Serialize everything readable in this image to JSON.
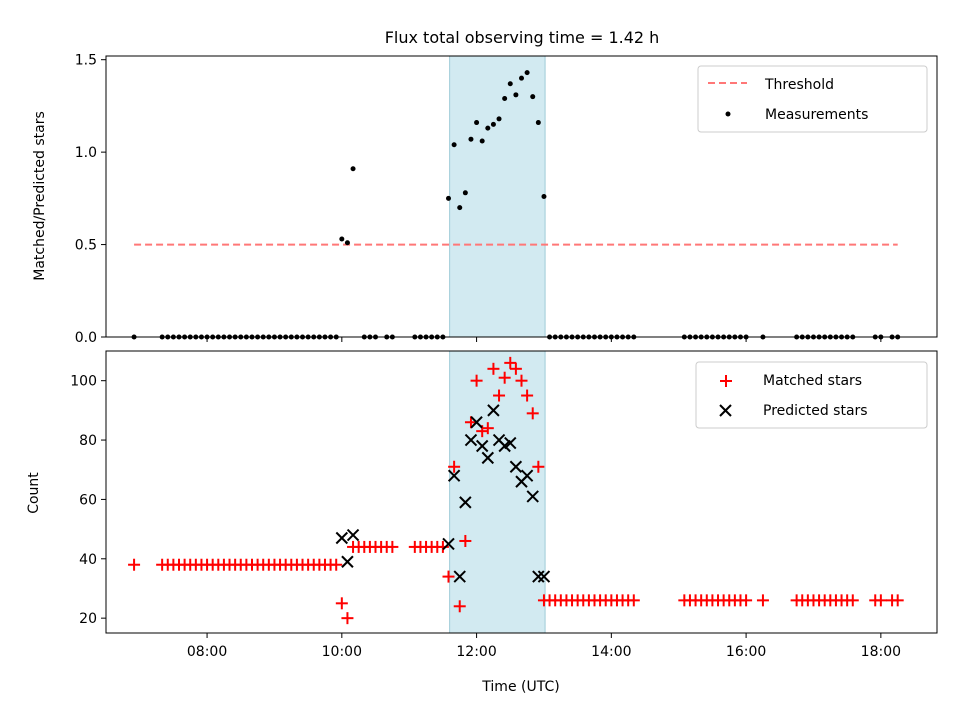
{
  "title": "Flux total observing time = 1.42 h",
  "chart_data": [
    {
      "type": "scatter",
      "ylabel": "Matched/Predicted stars",
      "xlabel": "",
      "xlim": [
        "06:30",
        "18:50"
      ],
      "ylim": [
        0,
        1.52
      ],
      "xticks": [
        "08:00",
        "10:00",
        "12:00",
        "14:00",
        "16:00",
        "18:00"
      ],
      "yticks": [
        0.0,
        0.5,
        1.0,
        1.5
      ],
      "ytick_labels": [
        "0.0",
        "0.5",
        "1.0",
        "1.5"
      ],
      "highlight_span": {
        "start": "11:36",
        "end": "13:01",
        "color": "#add8e6"
      },
      "legend_position": "upper right",
      "legend": [
        "Threshold",
        "Measurements"
      ],
      "threshold": {
        "name": "Threshold",
        "value": 0.5,
        "x_start": "06:55",
        "x_end": "18:15",
        "color": "#ff6666",
        "style": "dashed"
      },
      "series": [
        {
          "name": "Measurements",
          "color": "#000000",
          "marker": "dot",
          "x": [
            "06:55",
            "07:20",
            "07:25",
            "07:30",
            "07:35",
            "07:40",
            "07:45",
            "07:50",
            "07:55",
            "08:00",
            "08:05",
            "08:10",
            "08:15",
            "08:20",
            "08:25",
            "08:30",
            "08:35",
            "08:40",
            "08:45",
            "08:50",
            "08:55",
            "09:00",
            "09:05",
            "09:10",
            "09:15",
            "09:20",
            "09:25",
            "09:30",
            "09:35",
            "09:40",
            "09:45",
            "09:50",
            "09:55",
            "10:00",
            "10:05",
            "10:10",
            "10:20",
            "10:25",
            "10:30",
            "10:40",
            "10:45",
            "11:05",
            "11:10",
            "11:15",
            "11:20",
            "11:25",
            "11:30",
            "11:35",
            "11:40",
            "11:45",
            "11:50",
            "11:55",
            "12:00",
            "12:05",
            "12:10",
            "12:15",
            "12:20",
            "12:25",
            "12:30",
            "12:35",
            "12:40",
            "12:45",
            "12:50",
            "12:55",
            "13:00",
            "13:05",
            "13:10",
            "13:15",
            "13:20",
            "13:25",
            "13:30",
            "13:35",
            "13:40",
            "13:45",
            "13:50",
            "13:55",
            "14:00",
            "14:05",
            "14:10",
            "14:15",
            "14:20",
            "15:05",
            "15:10",
            "15:15",
            "15:20",
            "15:25",
            "15:30",
            "15:35",
            "15:40",
            "15:45",
            "15:50",
            "15:55",
            "16:00",
            "16:15",
            "16:45",
            "16:50",
            "16:55",
            "17:00",
            "17:05",
            "17:10",
            "17:15",
            "17:20",
            "17:25",
            "17:30",
            "17:35",
            "17:55",
            "18:00",
            "18:10",
            "18:15"
          ],
          "y": [
            0,
            0,
            0,
            0,
            0,
            0,
            0,
            0,
            0,
            0,
            0,
            0,
            0,
            0,
            0,
            0,
            0,
            0,
            0,
            0,
            0,
            0,
            0,
            0,
            0,
            0,
            0,
            0,
            0,
            0,
            0,
            0,
            0,
            0.53,
            0.51,
            0.91,
            0,
            0,
            0,
            0,
            0,
            0,
            0,
            0,
            0,
            0,
            0,
            0.75,
            1.04,
            0.7,
            0.78,
            1.07,
            1.16,
            1.06,
            1.13,
            1.15,
            1.18,
            1.29,
            1.37,
            1.31,
            1.4,
            1.43,
            1.3,
            1.16,
            0.76,
            0,
            0,
            0,
            0,
            0,
            0,
            0,
            0,
            0,
            0,
            0,
            0,
            0,
            0,
            0,
            0,
            0,
            0,
            0,
            0,
            0,
            0,
            0,
            0,
            0,
            0,
            0,
            0,
            0,
            0,
            0,
            0,
            0,
            0,
            0,
            0,
            0,
            0,
            0,
            0,
            0,
            0,
            0,
            0
          ]
        }
      ]
    },
    {
      "type": "scatter",
      "xlabel": "Time (UTC)",
      "ylabel": "Count",
      "xlim": [
        "06:30",
        "18:50"
      ],
      "ylim": [
        15,
        110
      ],
      "xticks": [
        "08:00",
        "10:00",
        "12:00",
        "14:00",
        "16:00",
        "18:00"
      ],
      "yticks": [
        20,
        40,
        60,
        80,
        100
      ],
      "highlight_span": {
        "start": "11:36",
        "end": "13:01",
        "color": "#add8e6"
      },
      "legend_position": "upper right",
      "legend": [
        "Matched stars",
        "Predicted stars"
      ],
      "series": [
        {
          "name": "Matched stars",
          "color": "#ff0000",
          "marker": "plus",
          "x": [
            "06:55",
            "07:20",
            "07:25",
            "07:30",
            "07:35",
            "07:40",
            "07:45",
            "07:50",
            "07:55",
            "08:00",
            "08:05",
            "08:10",
            "08:15",
            "08:20",
            "08:25",
            "08:30",
            "08:35",
            "08:40",
            "08:45",
            "08:50",
            "08:55",
            "09:00",
            "09:05",
            "09:10",
            "09:15",
            "09:20",
            "09:25",
            "09:30",
            "09:35",
            "09:40",
            "09:45",
            "09:50",
            "09:55",
            "10:00",
            "10:05",
            "10:10",
            "10:15",
            "10:20",
            "10:25",
            "10:30",
            "10:35",
            "10:40",
            "10:45",
            "11:05",
            "11:10",
            "11:15",
            "11:20",
            "11:25",
            "11:30",
            "11:35",
            "11:40",
            "11:45",
            "11:50",
            "11:55",
            "12:00",
            "12:05",
            "12:10",
            "12:15",
            "12:20",
            "12:25",
            "12:30",
            "12:35",
            "12:40",
            "12:45",
            "12:50",
            "12:55",
            "13:00",
            "13:05",
            "13:10",
            "13:15",
            "13:20",
            "13:25",
            "13:30",
            "13:35",
            "13:40",
            "13:45",
            "13:50",
            "13:55",
            "14:00",
            "14:05",
            "14:10",
            "14:15",
            "14:20",
            "15:05",
            "15:10",
            "15:15",
            "15:20",
            "15:25",
            "15:30",
            "15:35",
            "15:40",
            "15:45",
            "15:50",
            "15:55",
            "16:00",
            "16:15",
            "16:45",
            "16:50",
            "16:55",
            "17:00",
            "17:05",
            "17:10",
            "17:15",
            "17:20",
            "17:25",
            "17:30",
            "17:35",
            "17:55",
            "18:00",
            "18:10",
            "18:15"
          ],
          "y": [
            38,
            38,
            38,
            38,
            38,
            38,
            38,
            38,
            38,
            38,
            38,
            38,
            38,
            38,
            38,
            38,
            38,
            38,
            38,
            38,
            38,
            38,
            38,
            38,
            38,
            38,
            38,
            38,
            38,
            38,
            38,
            38,
            38,
            25,
            20,
            44,
            44,
            44,
            44,
            44,
            44,
            44,
            44,
            44,
            44,
            44,
            44,
            44,
            44,
            34,
            71,
            24,
            46,
            86,
            100,
            83,
            84,
            104,
            95,
            101,
            106,
            104,
            100,
            95,
            89,
            71,
            26,
            26,
            26,
            26,
            26,
            26,
            26,
            26,
            26,
            26,
            26,
            26,
            26,
            26,
            26,
            26,
            26,
            26,
            26,
            26,
            26,
            26,
            26,
            26,
            26,
            26,
            26,
            26,
            26,
            26,
            26,
            26,
            26,
            26,
            26,
            26,
            26,
            26,
            26,
            26,
            26,
            26,
            26,
            26,
            26
          ]
        },
        {
          "name": "Predicted stars",
          "color": "#000000",
          "marker": "x",
          "x": [
            "10:00",
            "10:05",
            "10:10",
            "11:35",
            "11:40",
            "11:45",
            "11:50",
            "11:55",
            "12:00",
            "12:05",
            "12:10",
            "12:15",
            "12:20",
            "12:25",
            "12:30",
            "12:35",
            "12:40",
            "12:45",
            "12:50",
            "12:55",
            "13:00"
          ],
          "y": [
            47,
            39,
            48,
            45,
            68,
            34,
            59,
            80,
            86,
            78,
            74,
            90,
            80,
            78,
            79,
            71,
            66,
            68,
            61,
            34,
            34
          ]
        }
      ]
    }
  ]
}
